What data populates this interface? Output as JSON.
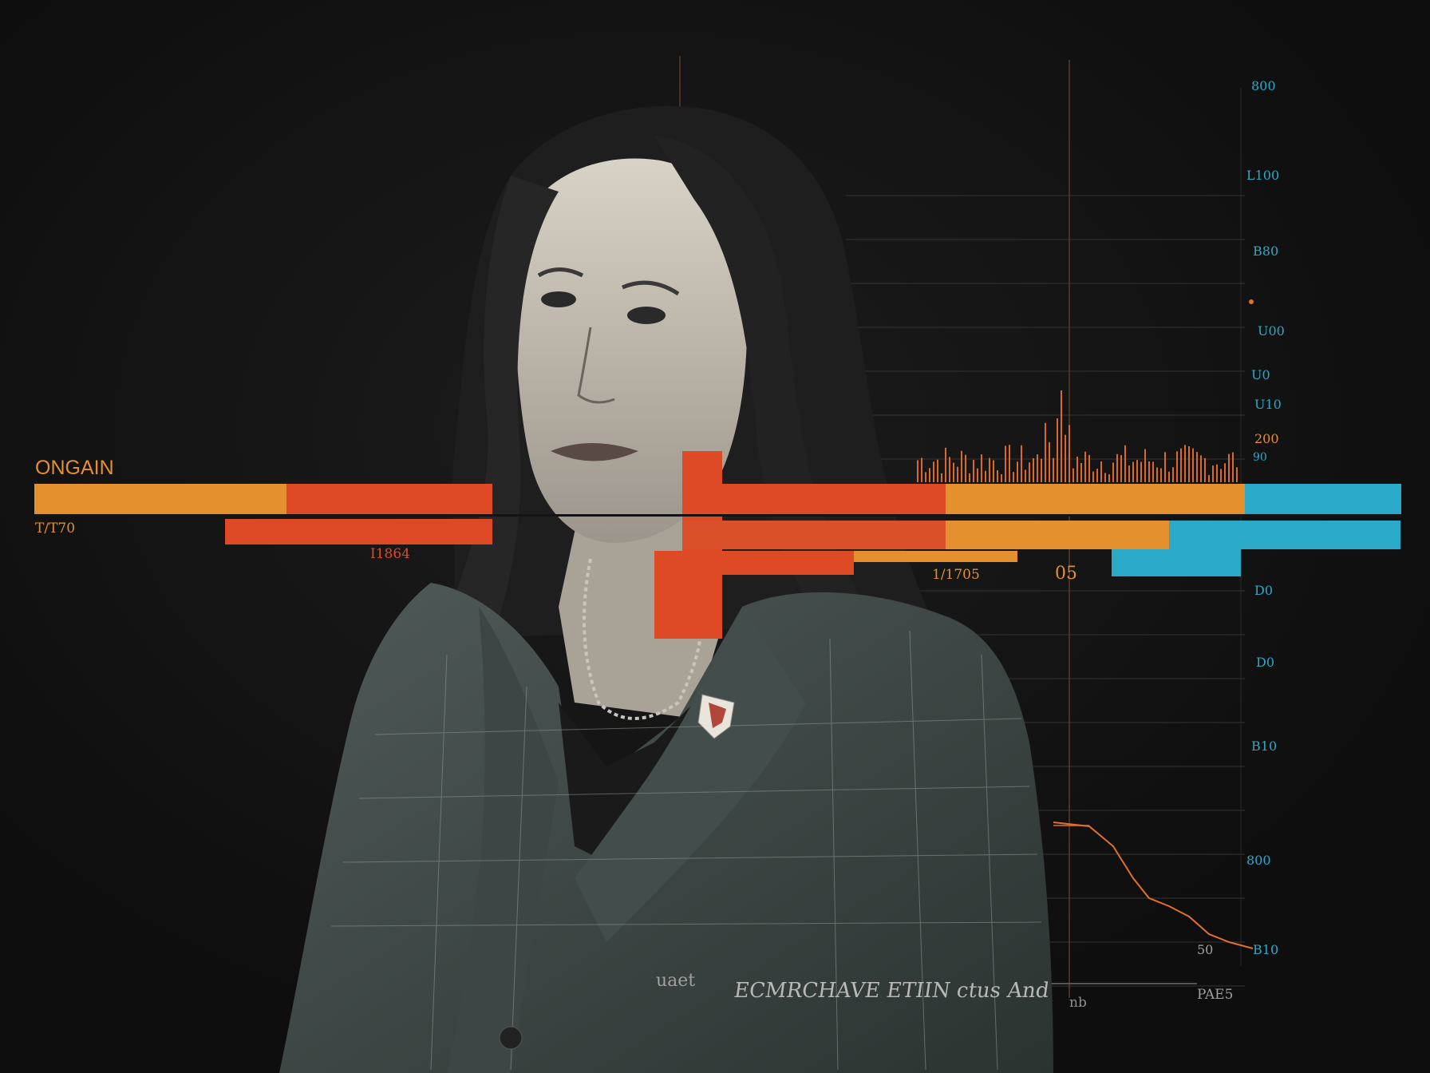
{
  "image": {
    "subject": "woman with dark shoulder-length hair in a grey blazer, monochrome photo",
    "colors": {
      "background": "#141414",
      "orange": "#e5902f",
      "red_orange": "#df4a26",
      "cyan": "#2aaac8",
      "grid": "#3a3a3a",
      "chart_line": "#e0702a"
    }
  },
  "labels": {
    "heading": "ONGAIN",
    "left_tick": "T/T70",
    "mid_tick": "I1864",
    "mid_tick_2": "1/1705",
    "mid_tick_3": "05",
    "bottom_caption": "ECMRCHAVE ETIIN ctus And",
    "bottom_left": "uaet",
    "bottom_right": "PAE5",
    "bottom_right_2": "nb"
  },
  "axis_right": {
    "ticks": [
      "800",
      "L100",
      "B80",
      "U00",
      "U0",
      "U10",
      "200",
      "90",
      "D0",
      "D0",
      "B10",
      "800",
      "B10",
      "50"
    ]
  }
}
